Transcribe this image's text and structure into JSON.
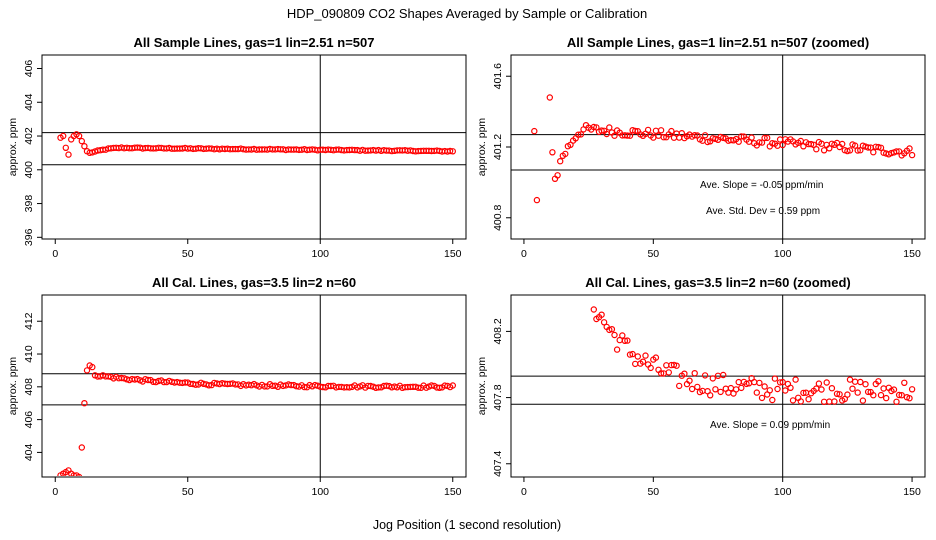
{
  "figure": {
    "title": "HDP_090809  CO2 Shapes Averaged by Sample or Calibration",
    "xlabel": "Jog Position (1 second resolution)"
  },
  "colors": {
    "points": "#ff0000",
    "lines": "#000000",
    "background": "#ffffff"
  },
  "chart_data": [
    {
      "type": "scatter",
      "title": "All Sample Lines, gas=1 lin=2.51 n=507",
      "xlabel": "",
      "ylabel": "approx. ppm",
      "xlim": [
        -5,
        155
      ],
      "ylim": [
        395.9,
        406.8
      ],
      "xticks": [
        0,
        50,
        100,
        150
      ],
      "yticks": [
        396,
        398,
        400,
        402,
        404,
        406
      ],
      "vline": 100,
      "hlines": [
        402.2,
        400.3
      ],
      "annotations": [],
      "segments": [
        {
          "x": [
            2,
            3,
            4,
            5,
            6,
            7,
            8,
            9,
            10,
            11,
            12
          ],
          "y": [
            401.9,
            402.0,
            401.3,
            400.9,
            401.8,
            402.0,
            402.1,
            402.0,
            401.7,
            401.4,
            401.1
          ]
        },
        {
          "x0": 13,
          "x1": 150,
          "shape": "knee",
          "start": 401.0,
          "peak": 401.3,
          "peak_x": 25,
          "end": 401.1,
          "noise": 0.03
        }
      ]
    },
    {
      "type": "scatter",
      "title": "All Sample Lines, gas=1 lin=2.51 n=507 (zoomed)",
      "xlabel": "",
      "ylabel": "approx. ppm",
      "xlim": [
        -5,
        155
      ],
      "ylim": [
        400.68,
        401.72
      ],
      "xticks": [
        0,
        50,
        100,
        150
      ],
      "yticks": [
        400.8,
        401.2,
        401.6
      ],
      "vline": 100,
      "hlines": [
        401.27,
        401.07
      ],
      "annotations": [
        "Ave. Slope =  -0.05  ppm/min",
        "Ave. Std. Dev =  0.59  ppm"
      ],
      "segments": [
        {
          "x": [
            4,
            5,
            10,
            11,
            12,
            13,
            14,
            15
          ],
          "y": [
            401.29,
            400.9,
            401.48,
            401.17,
            401.02,
            401.04,
            401.12,
            401.15
          ]
        },
        {
          "x0": 16,
          "x1": 150,
          "shape": "knee",
          "start": 401.17,
          "peak": 401.3,
          "peak_x": 24,
          "end": 401.17,
          "noise": 0.025
        }
      ]
    },
    {
      "type": "scatter",
      "title": "All Cal. Lines, gas=3.5 lin=2 n=60",
      "xlabel": "",
      "ylabel": "approx. ppm",
      "xlim": [
        -5,
        155
      ],
      "ylim": [
        402.5,
        413.6
      ],
      "xticks": [
        0,
        50,
        100,
        150
      ],
      "yticks": [
        404,
        406,
        408,
        410,
        412
      ],
      "vline": 100,
      "hlines": [
        408.8,
        406.9
      ],
      "annotations": [],
      "segments": [
        {
          "x": [
            2,
            3,
            4,
            5,
            6,
            7,
            8,
            9,
            10,
            11,
            12,
            13,
            14,
            15
          ],
          "y": [
            402.6,
            402.7,
            402.8,
            402.9,
            402.7,
            402.6,
            402.6,
            402.5,
            404.3,
            407.0,
            409.0,
            409.3,
            409.2,
            408.7
          ]
        },
        {
          "x0": 16,
          "x1": 150,
          "shape": "decay",
          "start": 408.7,
          "end": 408.0,
          "tau": 30,
          "noise": 0.08
        }
      ]
    },
    {
      "type": "scatter",
      "title": "All Cal. Lines, gas=3.5 lin=2 n=60 (zoomed)",
      "xlabel": "",
      "ylabel": "approx. ppm",
      "xlim": [
        -5,
        155
      ],
      "ylim": [
        407.32,
        408.42
      ],
      "xticks": [
        0,
        50,
        100,
        150
      ],
      "yticks": [
        407.4,
        407.8,
        408.2
      ],
      "vline": 100,
      "hlines": [
        407.93,
        407.76
      ],
      "annotations": [
        "Ave. Slope =  0.09  ppm/min"
      ],
      "segments": [
        {
          "x0": 27,
          "x1": 150,
          "shape": "decay",
          "start": 408.36,
          "end": 407.84,
          "tau": 18,
          "noise": 0.07
        }
      ]
    }
  ]
}
